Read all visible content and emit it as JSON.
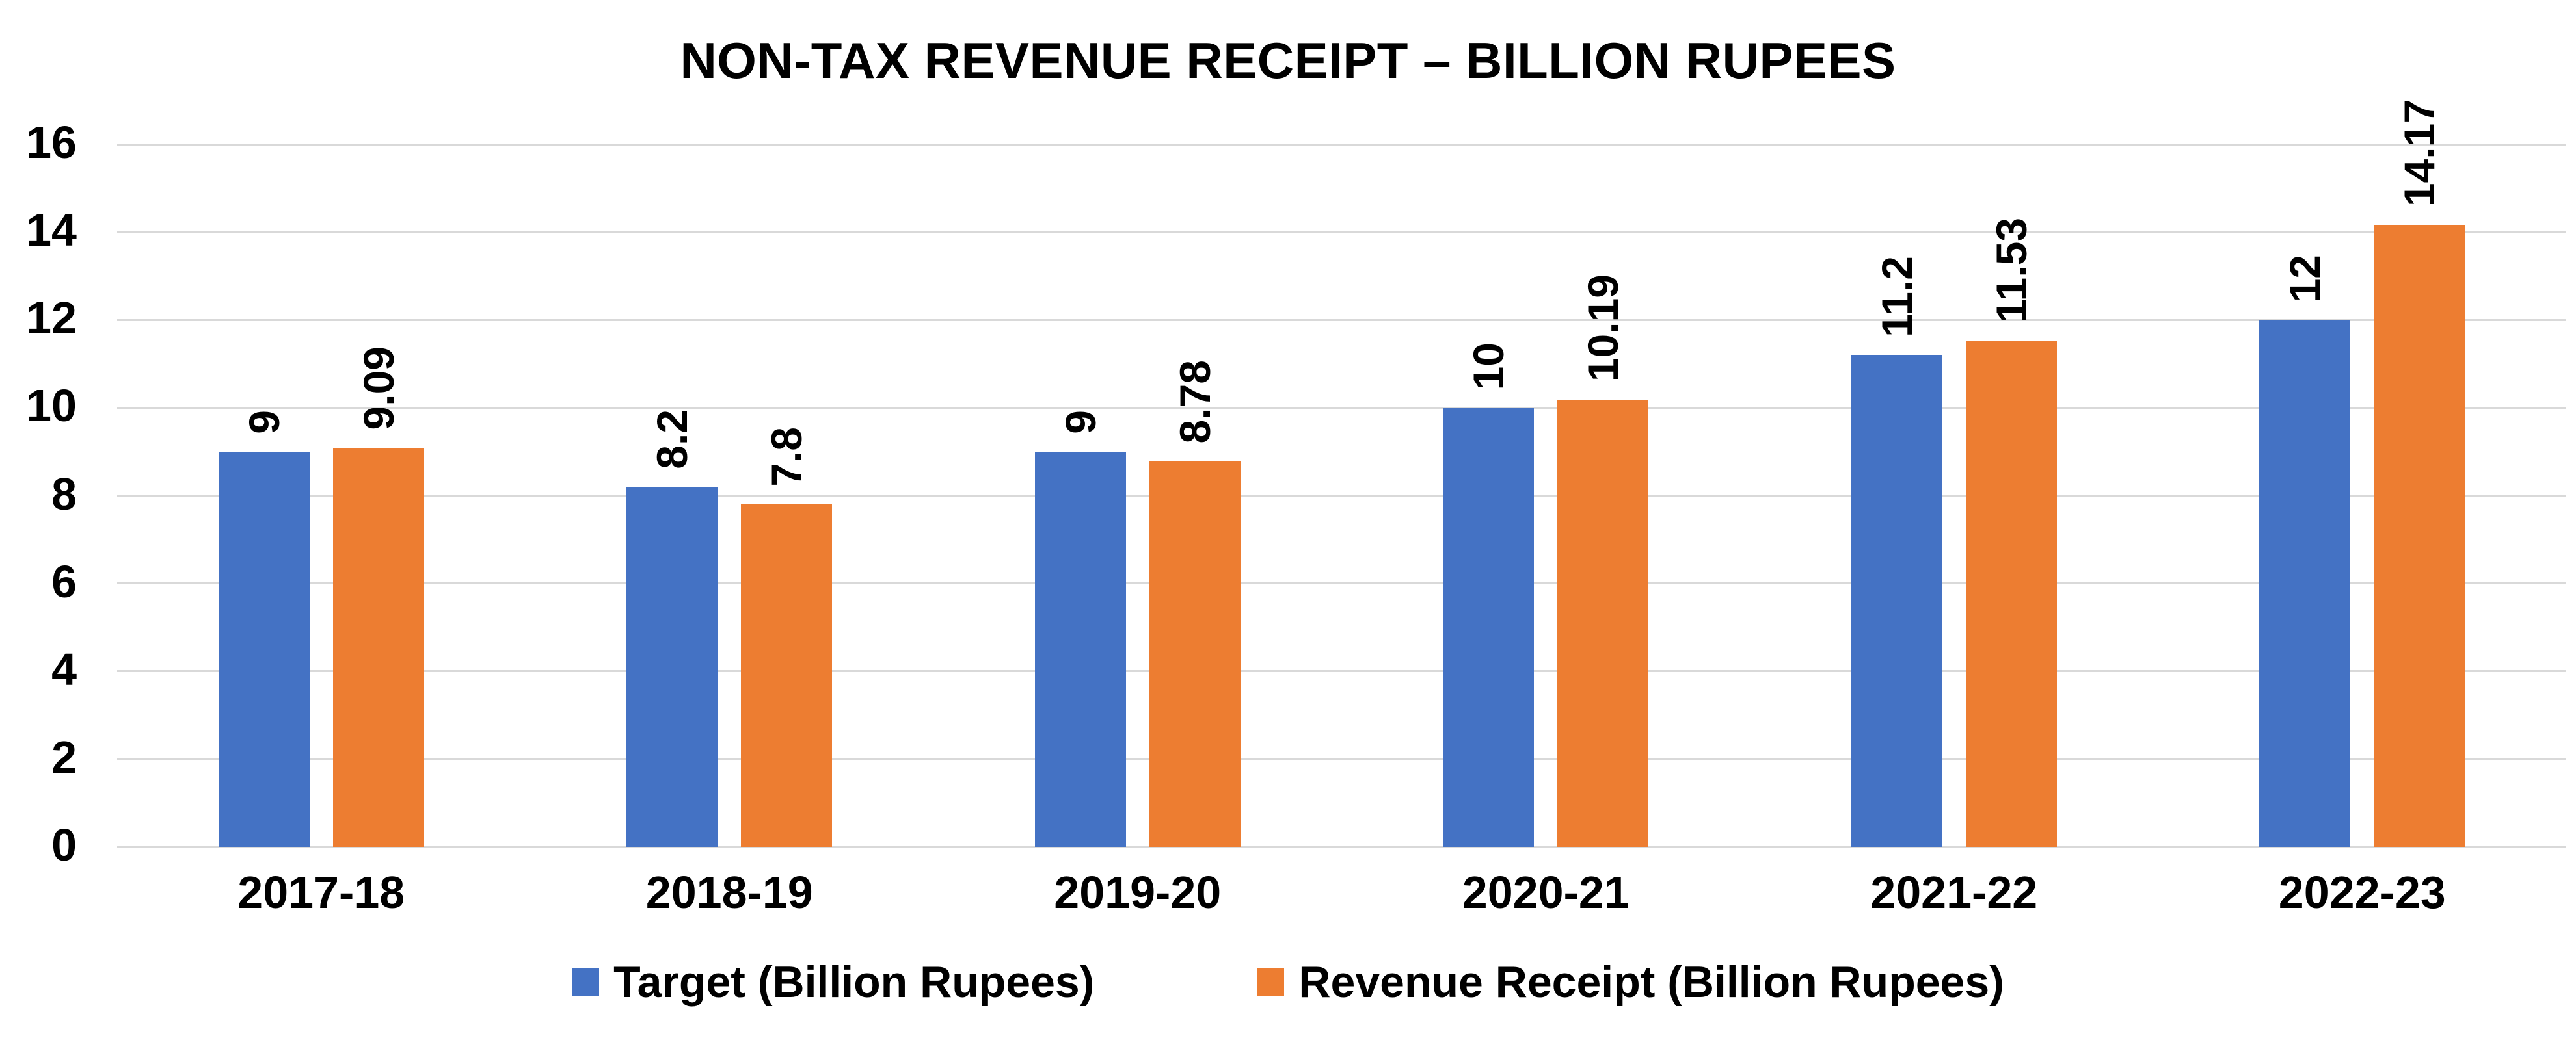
{
  "chart_data": {
    "type": "bar",
    "title": "NON-TAX REVENUE RECEIPT – BILLION RUPEES",
    "categories": [
      "2017-18",
      "2018-19",
      "2019-20",
      "2020-21",
      "2021-22",
      "2022-23"
    ],
    "series": [
      {
        "name": "Target (Billion Rupees)",
        "color": "#4472C4",
        "values": [
          9,
          8.2,
          9,
          10,
          11.2,
          12
        ],
        "labels": [
          "9",
          "8.2",
          "9",
          "10",
          "11.2",
          "12"
        ]
      },
      {
        "name": "Revenue Receipt (Billion Rupees)",
        "color": "#ED7D31",
        "values": [
          9.09,
          7.8,
          8.78,
          10.19,
          11.53,
          14.17
        ],
        "labels": [
          "9.09",
          "7.8",
          "8.78",
          "10.19",
          "11.53",
          "14.17"
        ]
      }
    ],
    "ylabel": "",
    "xlabel": "",
    "ylim": [
      0,
      16
    ],
    "ytick_step": 2,
    "yticks": [
      "0",
      "2",
      "4",
      "6",
      "8",
      "10",
      "12",
      "14",
      "16"
    ],
    "grid": "horizontal",
    "gridline_color": "#D9D9D9",
    "text_color": "#000000",
    "background_color": "#FFFFFF",
    "legend_position": "bottom",
    "data_label_rotation": -90
  }
}
